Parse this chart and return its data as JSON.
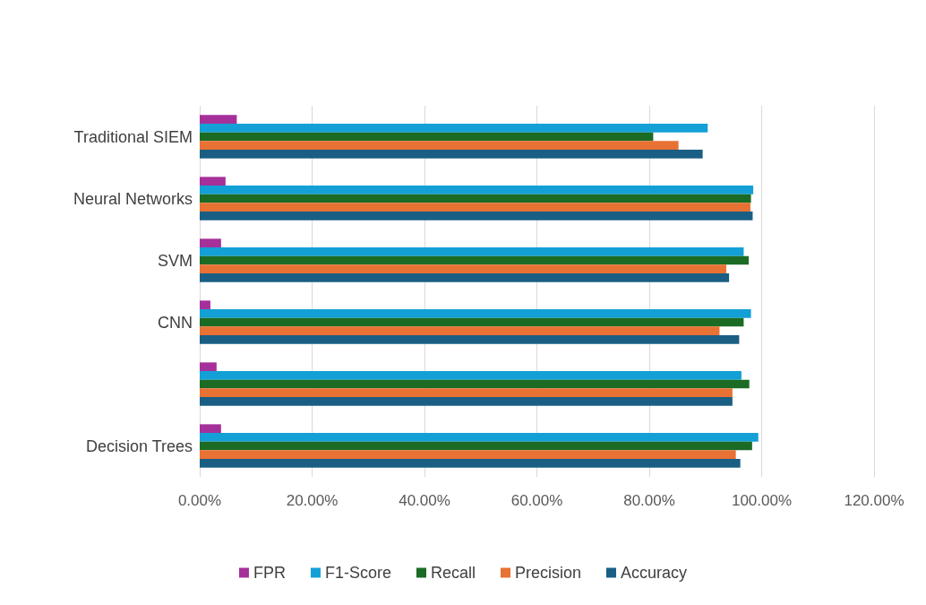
{
  "chart_data": {
    "type": "bar",
    "orientation": "horizontal",
    "categories": [
      "Traditional SIEM",
      "Neural Networks",
      "SVM",
      "CNN",
      null,
      "Decision Trees"
    ],
    "series": [
      {
        "name": "FPR",
        "color": "#a5309a",
        "values": [
          6.6,
          4.6,
          3.8,
          1.9,
          3.0,
          3.8
        ]
      },
      {
        "name": "F1-Score",
        "color": "#13a0d7",
        "values": [
          90.4,
          98.5,
          96.8,
          98.1,
          96.4,
          99.4
        ]
      },
      {
        "name": "Recall",
        "color": "#1b6b25",
        "values": [
          80.7,
          98.1,
          97.7,
          96.8,
          97.8,
          98.3
        ]
      },
      {
        "name": "Precision",
        "color": "#e87134",
        "values": [
          85.2,
          98.0,
          93.7,
          92.5,
          94.8,
          95.4
        ]
      },
      {
        "name": "Accuracy",
        "color": "#1a5e84",
        "values": [
          89.5,
          98.4,
          94.2,
          96.0,
          94.8,
          96.2
        ]
      }
    ],
    "xlim": [
      0,
      120
    ],
    "xticks": [
      {
        "value": 0,
        "label": "0.00%"
      },
      {
        "value": 20,
        "label": "20.00%"
      },
      {
        "value": 40,
        "label": "40.00%"
      },
      {
        "value": 60,
        "label": "60.00%"
      },
      {
        "value": 80,
        "label": "80.00%"
      },
      {
        "value": 100,
        "label": "100.00%"
      },
      {
        "value": 120,
        "label": "120.00%"
      }
    ],
    "grid": "x",
    "legend": "bottom"
  }
}
